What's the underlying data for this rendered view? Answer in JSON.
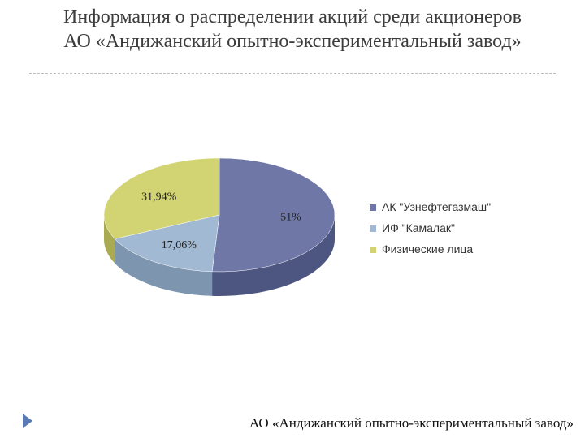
{
  "slide": {
    "title_line1": "Информация о распределении акций среди акционеров",
    "title_line2": "АО «Андижанский опытно-экспериментальный завод»",
    "footer": "АО «Андижанский опытно-экспериментальный завод»"
  },
  "chart_data": {
    "type": "pie",
    "style": "3d",
    "categories": [
      "АК \"Узнефтегазмаш\"",
      "ИФ \"Камалак\"",
      "Физические лица"
    ],
    "values": [
      51,
      17.06,
      31.94
    ],
    "labels": [
      "51%",
      "17,06%",
      "31,94%"
    ],
    "colors": [
      "#6e77a6",
      "#a2b9d3",
      "#d2d474"
    ],
    "side_colors": [
      "#4d5680",
      "#7d95ae",
      "#a9ab52"
    ],
    "legend_position": "right"
  },
  "icons": {
    "footer_mark": "triangle-arrow-icon",
    "footer_mark_color": "#5a7ab8"
  }
}
